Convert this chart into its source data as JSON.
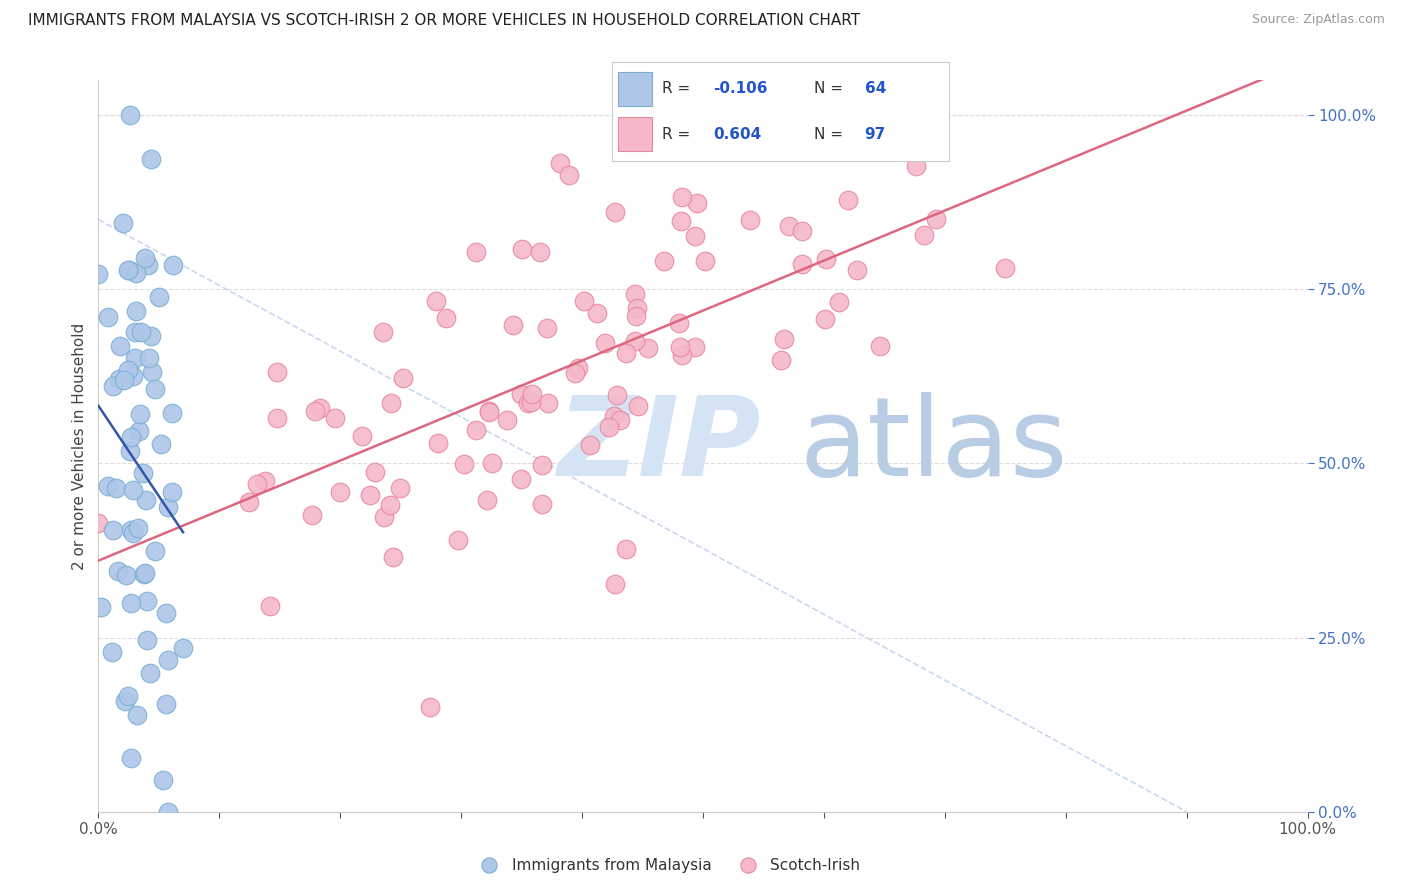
{
  "title": "IMMIGRANTS FROM MALAYSIA VS SCOTCH-IRISH 2 OR MORE VEHICLES IN HOUSEHOLD CORRELATION CHART",
  "source": "Source: ZipAtlas.com",
  "ylabel": "2 or more Vehicles in Household",
  "series1_label": "Immigrants from Malaysia",
  "series2_label": "Scotch-Irish",
  "series1_R": -0.106,
  "series1_N": 64,
  "series2_R": 0.604,
  "series2_N": 97,
  "series1_color": "#aec6e8",
  "series2_color": "#f5b8c8",
  "series1_edge": "#7aafd4",
  "series2_edge": "#e888a0",
  "trend1_color": "#3355aa",
  "trend2_color": "#dd6680",
  "diag_color": "#c8d8f0",
  "grid_color": "#dddddd",
  "right_tick_color": "#4472c4",
  "background_color": "#ffffff",
  "xlim": [
    0.0,
    1.0
  ],
  "ylim": [
    0.0,
    1.05
  ],
  "legend_R1_color": "#2255cc",
  "legend_R2_color": "#2255cc",
  "watermark_zip_color": "#d5e4f5",
  "watermark_atlas_color": "#b8cce4"
}
